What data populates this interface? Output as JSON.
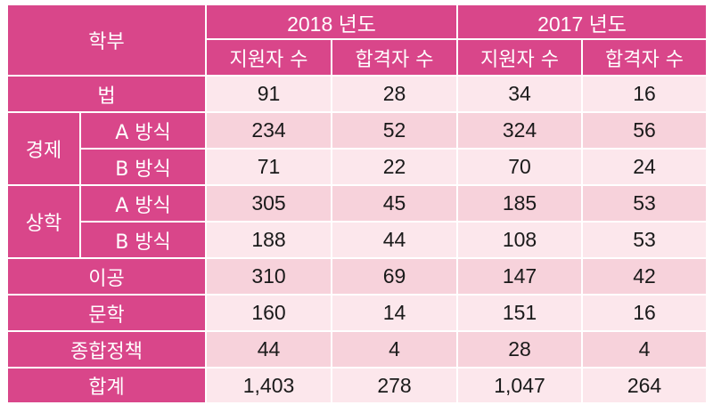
{
  "header": {
    "dept_label": "학부",
    "years": [
      "2018 년도",
      "2017 년도"
    ],
    "sub_labels": [
      "지원자 수",
      "합격자 수",
      "지원자 수",
      "합격자 수"
    ]
  },
  "rows": [
    {
      "dept": "법",
      "values": [
        "91",
        "28",
        "34",
        "16"
      ]
    },
    {
      "group": "경제",
      "method": "A 방식",
      "values": [
        "234",
        "52",
        "324",
        "56"
      ]
    },
    {
      "method": "B 방식",
      "values": [
        "71",
        "22",
        "70",
        "24"
      ]
    },
    {
      "group": "상학",
      "method": "A 방식",
      "values": [
        "305",
        "45",
        "185",
        "53"
      ]
    },
    {
      "method": "B 방식",
      "values": [
        "188",
        "44",
        "108",
        "53"
      ]
    },
    {
      "dept": "이공",
      "values": [
        "310",
        "69",
        "147",
        "42"
      ]
    },
    {
      "dept": "문학",
      "values": [
        "160",
        "14",
        "151",
        "16"
      ]
    },
    {
      "dept": "종합정책",
      "values": [
        "44",
        "4",
        "28",
        "4"
      ]
    },
    {
      "dept": "합계",
      "values": [
        "1,403",
        "278",
        "1,047",
        "264"
      ]
    }
  ],
  "colors": {
    "header": "#d9468a",
    "row_light": "#fce7ec",
    "row_mid": "#f7d2db",
    "text": "#1a1a1a",
    "header_text": "#ffffff"
  }
}
